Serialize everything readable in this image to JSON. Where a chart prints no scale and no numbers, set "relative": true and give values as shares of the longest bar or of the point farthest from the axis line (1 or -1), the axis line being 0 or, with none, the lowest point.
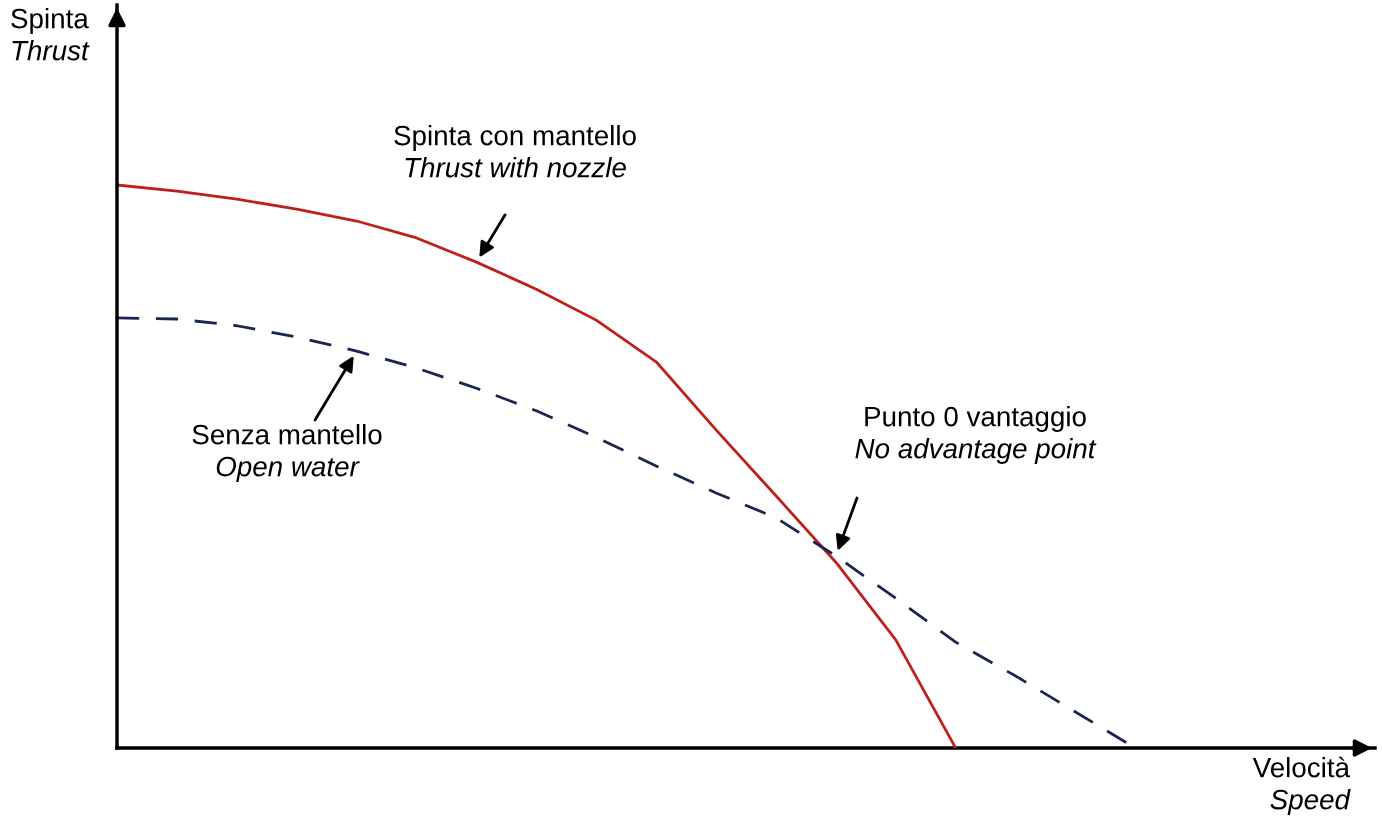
{
  "chart_data": {
    "type": "line",
    "relative": true,
    "xlabel": "Velocità\nSpeed",
    "ylabel": "Spinta\nThrust",
    "categories": [
      null,
      null,
      null,
      null,
      null,
      null,
      null,
      null,
      null,
      null,
      null,
      null,
      null,
      null,
      null,
      null,
      null,
      null,
      null,
      null,
      null,
      null
    ],
    "series": [
      {
        "color": "#c0201a",
        "line_style": "solid",
        "values": [
          1.0,
          0.989,
          0.975,
          0.957,
          0.936,
          0.906,
          0.863,
          0.815,
          0.76,
          0.686,
          0.565,
          0.448,
          0.33,
          0.192,
          0.0,
          null,
          null,
          null,
          null,
          null,
          null,
          null
        ]
      },
      {
        "color": "#1a2550",
        "line_style": "dashed",
        "values": [
          0.764,
          0.762,
          0.75,
          0.73,
          0.705,
          0.675,
          0.639,
          0.599,
          0.552,
          0.501,
          0.453,
          0.409,
          0.341,
          0.266,
          0.188,
          0.128,
          0.064,
          0.0,
          null,
          null,
          null,
          null
        ]
      }
    ],
    "annotations": [
      "Spinta con mantello\nThrust with nozzle",
      "Senza mantello\nOpen water",
      "Punto 0 vantaggio\nNo advantage point"
    ],
    "legend": false,
    "marker": "none"
  }
}
